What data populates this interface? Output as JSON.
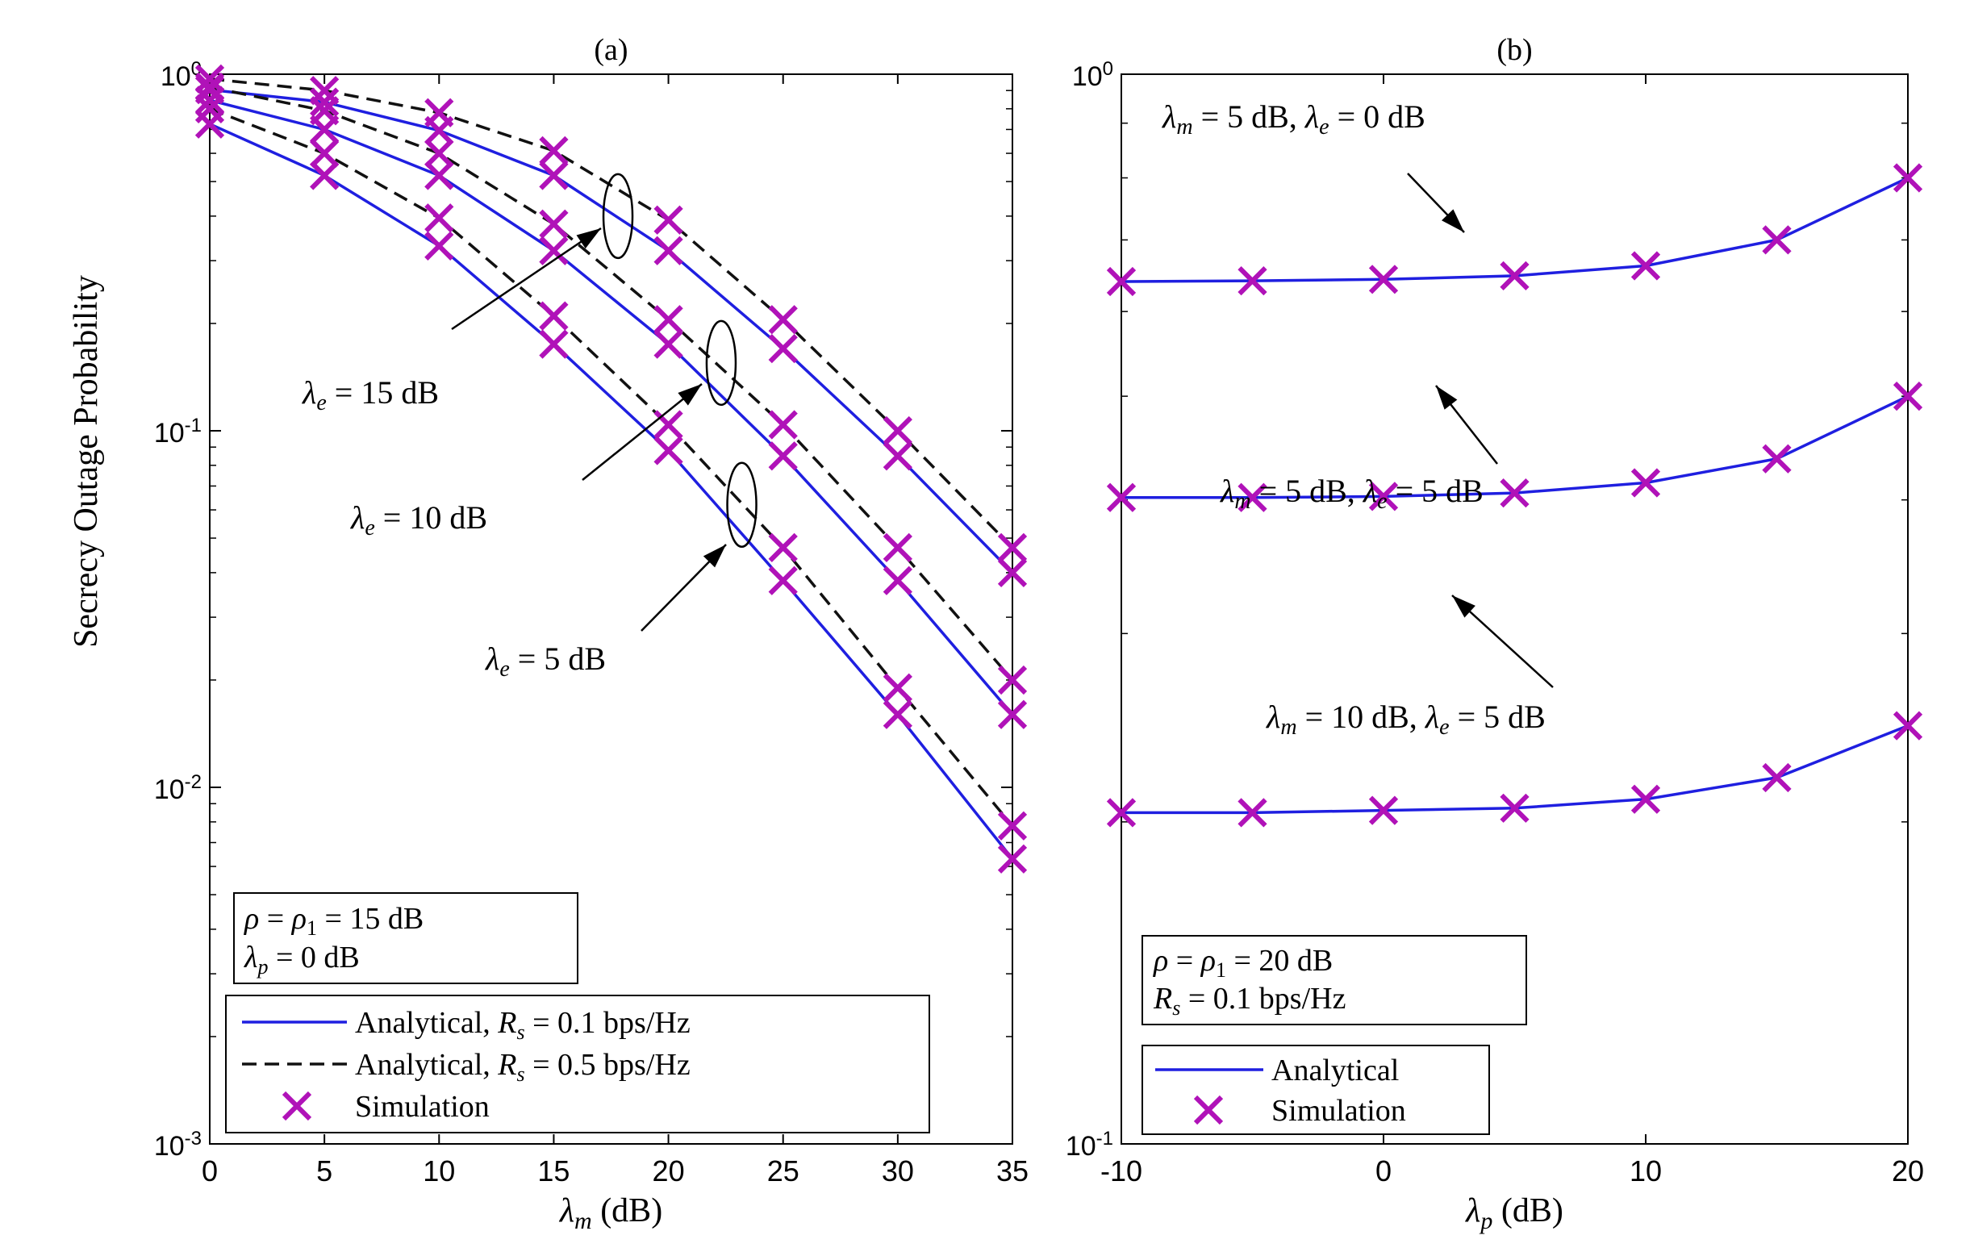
{
  "colors": {
    "analytical": "#1f1fe0",
    "dashed": "#111111",
    "simulation": "#b012b8",
    "axis": "#000000"
  },
  "ylabel": "Secrecy Outage Probability",
  "chart_data": [
    {
      "type": "line",
      "subplot_label": "(a)",
      "xlabel": "λm (dB)",
      "ylabel": "Secrecy Outage Probability",
      "yscale": "log",
      "xlim": [
        0,
        35
      ],
      "ylim": [
        0.001,
        1
      ],
      "xticks": [
        "0",
        "5",
        "10",
        "15",
        "20",
        "25",
        "30",
        "35"
      ],
      "yticks": [
        {
          "base": "10",
          "exp": "0"
        },
        {
          "base": "10",
          "exp": "-1"
        },
        {
          "base": "10",
          "exp": "-2"
        },
        {
          "base": "10",
          "exp": "-3"
        }
      ],
      "x": [
        0,
        5,
        10,
        15,
        20,
        25,
        30,
        35
      ],
      "series": [
        {
          "name": "Analytical, Rs = 0.1 bps/Hz, λe = 15 dB",
          "style": "solid",
          "values": [
            0.905,
            0.835,
            0.695,
            0.52,
            0.32,
            0.17,
            0.085,
            0.04
          ]
        },
        {
          "name": "Analytical, Rs = 0.5 bps/Hz, λe = 15 dB",
          "style": "dashed",
          "values": [
            0.97,
            0.9,
            0.78,
            0.61,
            0.39,
            0.205,
            0.1,
            0.047
          ]
        },
        {
          "name": "Analytical, Rs = 0.1 bps/Hz, λe = 10 dB",
          "style": "solid",
          "values": [
            0.845,
            0.7,
            0.52,
            0.32,
            0.175,
            0.085,
            0.038,
            0.016
          ]
        },
        {
          "name": "Analytical, Rs = 0.5 bps/Hz, λe = 10 dB",
          "style": "dashed",
          "values": [
            0.92,
            0.79,
            0.6,
            0.38,
            0.205,
            0.104,
            0.047,
            0.02
          ]
        },
        {
          "name": "Analytical, Rs = 0.1 bps/Hz, λe = 5 dB",
          "style": "solid",
          "values": [
            0.725,
            0.52,
            0.33,
            0.175,
            0.088,
            0.038,
            0.016,
            0.0063
          ]
        },
        {
          "name": "Analytical, Rs = 0.5 bps/Hz, λe = 5 dB",
          "style": "dashed",
          "values": [
            0.8,
            0.6,
            0.395,
            0.21,
            0.104,
            0.047,
            0.019,
            0.0078
          ]
        }
      ],
      "annotations": [
        {
          "base": "λ",
          "sub": "e",
          "rest": " = 15 dB"
        },
        {
          "base": "λ",
          "sub": "e",
          "rest": " = 10 dB"
        },
        {
          "base": "λ",
          "sub": "e",
          "rest": " = 5 dB"
        }
      ],
      "param_box": [
        "ρ = ρ1 = 15 dB",
        "λp = 0 dB"
      ],
      "legend": {
        "position": "bottom-left",
        "entries": [
          {
            "label": "Analytical, Rs = 0.1 bps/Hz",
            "text": "Analytical, ",
            "rsym": "R",
            "rsub": "s",
            "rtail": " = 0.1 bps/Hz",
            "style": "solid"
          },
          {
            "label": "Analytical, Rs = 0.5 bps/Hz",
            "text": "Analytical, ",
            "rsym": "R",
            "rsub": "s",
            "rtail": " = 0.5 bps/Hz",
            "style": "dashed"
          },
          {
            "label": "Simulation",
            "text": "Simulation",
            "style": "marker"
          }
        ]
      }
    },
    {
      "type": "line",
      "subplot_label": "(b)",
      "xlabel": "λp (dB)",
      "yscale": "log",
      "xlim": [
        -10,
        20
      ],
      "ylim": [
        0.1,
        1
      ],
      "xticks": [
        "-10",
        "0",
        "10",
        "20"
      ],
      "yticks": [
        {
          "base": "10",
          "exp": "0"
        },
        {
          "base": "10",
          "exp": "-1"
        }
      ],
      "x": [
        -10,
        -5,
        0,
        5,
        10,
        15,
        20
      ],
      "series": [
        {
          "name": "λm = 5 dB, λe = 0 dB",
          "style": "solid",
          "values": [
            0.64,
            0.641,
            0.643,
            0.648,
            0.662,
            0.7,
            0.8
          ]
        },
        {
          "name": "λm = 5 dB, λe = 5 dB",
          "style": "solid",
          "values": [
            0.402,
            0.402,
            0.403,
            0.406,
            0.415,
            0.437,
            0.5
          ]
        },
        {
          "name": "λm = 10 dB, λe = 5 dB",
          "style": "solid",
          "values": [
            0.204,
            0.204,
            0.205,
            0.206,
            0.21,
            0.22,
            0.246
          ]
        }
      ],
      "annotations": [
        {
          "base": "λ",
          "sub": "m",
          "mid": " = 5 dB, ",
          "base2": "λ",
          "sub2": "e",
          "rest": " = 0 dB"
        },
        {
          "base": "λ",
          "sub": "m",
          "mid": " = 5 dB, ",
          "base2": "λ",
          "sub2": "e",
          "rest": " = 5 dB"
        },
        {
          "base": "λ",
          "sub": "m",
          "mid": " = 10 dB, ",
          "base2": "λ",
          "sub2": "e",
          "rest": " = 5 dB"
        }
      ],
      "param_box": [
        "ρ = ρ1 = 20 dB",
        "Rs = 0.1 bps/Hz"
      ],
      "legend": {
        "position": "bottom-left",
        "entries": [
          {
            "label": "Analytical",
            "text": "Analytical",
            "style": "solid"
          },
          {
            "label": "Simulation",
            "text": "Simulation",
            "style": "marker"
          }
        ]
      }
    }
  ]
}
